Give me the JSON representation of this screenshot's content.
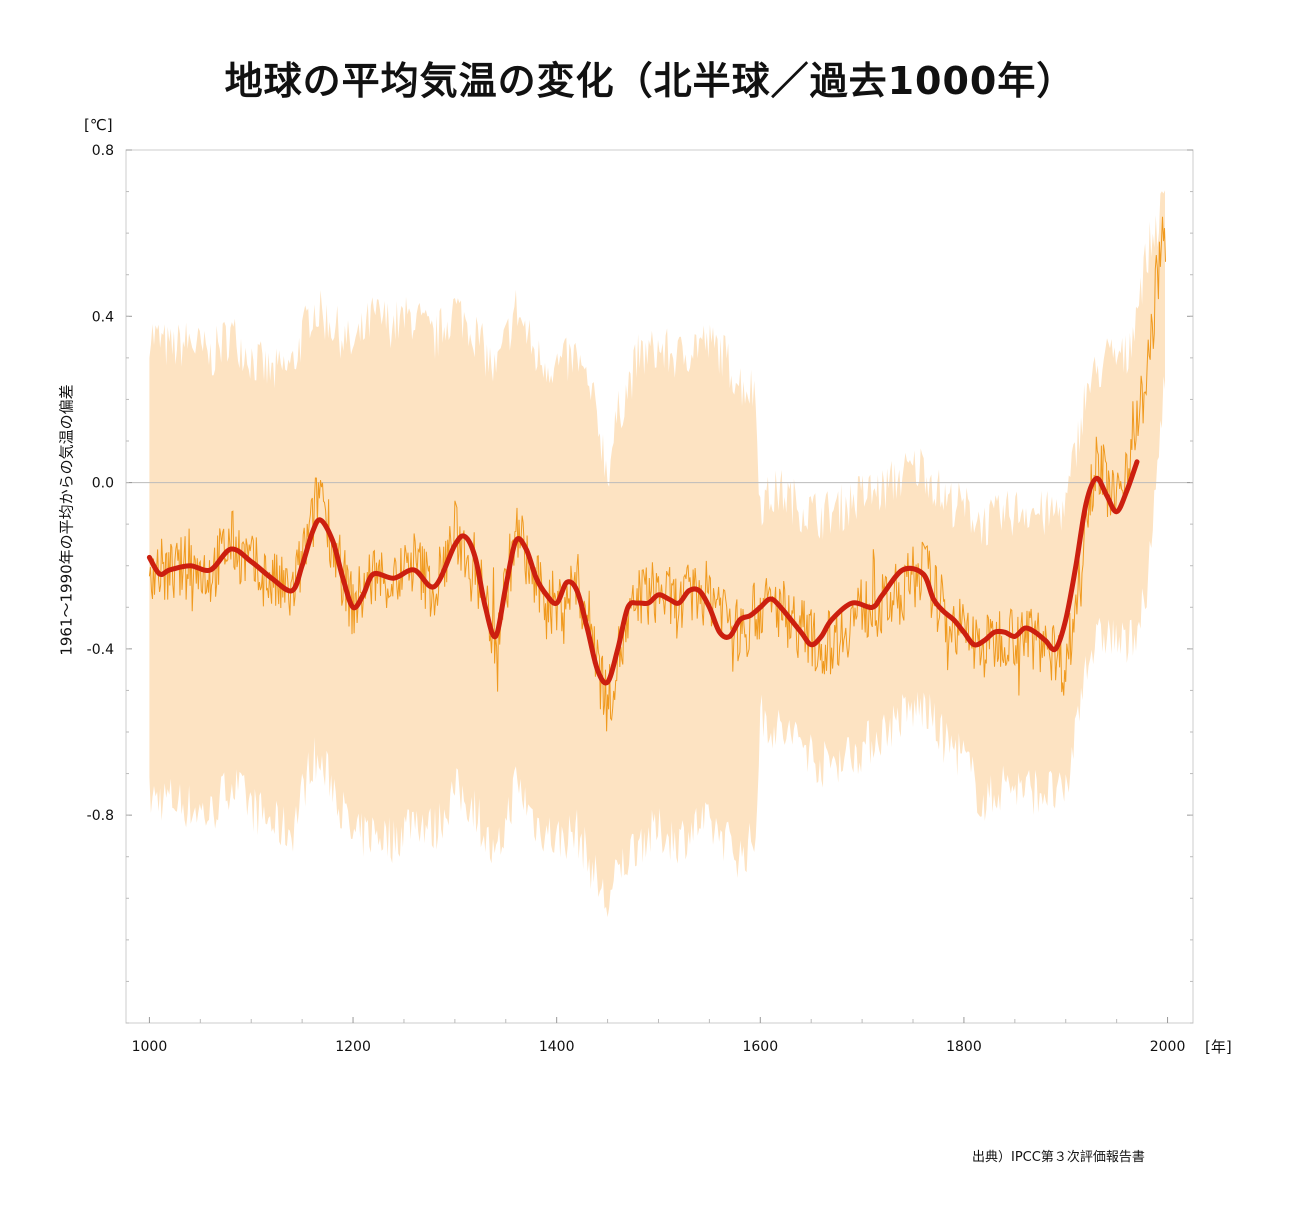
{
  "title": "地球の平均気温の変化（北半球／過去1000年）",
  "y_unit": "[℃]",
  "y_axis_label": "1961～1990年の平均からの気温の偏差",
  "x_unit": "[年]",
  "source": "出典）IPCC第３次評価報告書",
  "colors": {
    "smoothed": "#cc1f0f",
    "annual": "#f09a1f",
    "uncertainty": "#fde3c2",
    "zero_line": "#bbbbbb",
    "frame": "#cccccc"
  },
  "chart_data": {
    "type": "line",
    "title": "地球の平均気温の変化（北半球／過去1000年）",
    "xlabel": "[年]",
    "ylabel": "1961～1990年の平均からの気温の偏差",
    "xlim": [
      977,
      2025
    ],
    "ylim": [
      -1.3,
      0.8
    ],
    "x_ticks": [
      1000,
      1200,
      1400,
      1600,
      1800,
      2000
    ],
    "x_tick_labels": [
      "1000",
      "1200",
      "1400",
      "1600",
      "1800",
      "2000"
    ],
    "y_ticks": [
      0.8,
      0.4,
      0.0,
      -0.4,
      -0.8
    ],
    "y_tick_labels": [
      "0.8",
      "0.4",
      "0.0",
      "-0.4",
      "-0.8"
    ],
    "grid": false,
    "zero_line": true,
    "series": [
      {
        "style": "smoothed-thick",
        "x": [
          1000,
          1010,
          1020,
          1040,
          1060,
          1080,
          1100,
          1120,
          1140,
          1150,
          1160,
          1168,
          1180,
          1190,
          1200,
          1210,
          1220,
          1240,
          1260,
          1280,
          1300,
          1310,
          1320,
          1330,
          1340,
          1350,
          1360,
          1370,
          1380,
          1390,
          1400,
          1410,
          1420,
          1430,
          1440,
          1450,
          1460,
          1470,
          1480,
          1490,
          1500,
          1510,
          1520,
          1530,
          1540,
          1550,
          1560,
          1570,
          1580,
          1590,
          1600,
          1610,
          1620,
          1640,
          1650,
          1660,
          1670,
          1690,
          1710,
          1720,
          1740,
          1760,
          1770,
          1780,
          1790,
          1800,
          1810,
          1820,
          1830,
          1840,
          1850,
          1860,
          1870,
          1880,
          1890,
          1900,
          1910,
          1920,
          1930,
          1940,
          1950,
          1960,
          1970
        ],
        "values": [
          -0.18,
          -0.22,
          -0.21,
          -0.2,
          -0.21,
          -0.16,
          -0.19,
          -0.23,
          -0.26,
          -0.2,
          -0.12,
          -0.09,
          -0.14,
          -0.23,
          -0.3,
          -0.27,
          -0.22,
          -0.23,
          -0.21,
          -0.25,
          -0.15,
          -0.13,
          -0.18,
          -0.3,
          -0.37,
          -0.25,
          -0.14,
          -0.16,
          -0.23,
          -0.27,
          -0.29,
          -0.24,
          -0.26,
          -0.35,
          -0.45,
          -0.48,
          -0.4,
          -0.3,
          -0.29,
          -0.29,
          -0.27,
          -0.28,
          -0.29,
          -0.26,
          -0.26,
          -0.3,
          -0.36,
          -0.37,
          -0.33,
          -0.32,
          -0.3,
          -0.28,
          -0.3,
          -0.36,
          -0.39,
          -0.37,
          -0.33,
          -0.29,
          -0.3,
          -0.27,
          -0.21,
          -0.22,
          -0.28,
          -0.31,
          -0.33,
          -0.36,
          -0.39,
          -0.38,
          -0.36,
          -0.36,
          -0.37,
          -0.35,
          -0.36,
          -0.38,
          -0.4,
          -0.33,
          -0.2,
          -0.05,
          0.01,
          -0.03,
          -0.07,
          -0.02,
          0.05
        ]
      },
      {
        "style": "annual-thin",
        "x": [
          1000,
          1020,
          1040,
          1060,
          1080,
          1100,
          1120,
          1140,
          1160,
          1168,
          1180,
          1200,
          1220,
          1240,
          1260,
          1280,
          1300,
          1320,
          1340,
          1360,
          1380,
          1400,
          1420,
          1440,
          1450,
          1460,
          1480,
          1500,
          1520,
          1540,
          1560,
          1580,
          1600,
          1620,
          1640,
          1660,
          1680,
          1700,
          1720,
          1740,
          1760,
          1780,
          1800,
          1820,
          1840,
          1860,
          1880,
          1900,
          1910,
          1920,
          1930,
          1940,
          1950,
          1960,
          1970,
          1980,
          1990,
          1998
        ],
        "values": [
          -0.2,
          -0.22,
          -0.2,
          -0.22,
          -0.14,
          -0.2,
          -0.24,
          -0.27,
          -0.1,
          0.0,
          -0.15,
          -0.3,
          -0.22,
          -0.24,
          -0.19,
          -0.26,
          -0.12,
          -0.2,
          -0.38,
          -0.12,
          -0.25,
          -0.3,
          -0.24,
          -0.4,
          -0.54,
          -0.42,
          -0.28,
          -0.26,
          -0.3,
          -0.26,
          -0.28,
          -0.37,
          -0.3,
          -0.3,
          -0.35,
          -0.4,
          -0.36,
          -0.3,
          -0.3,
          -0.26,
          -0.2,
          -0.32,
          -0.36,
          -0.4,
          -0.36,
          -0.37,
          -0.38,
          -0.44,
          -0.3,
          -0.05,
          0.05,
          0.0,
          -0.05,
          0.05,
          0.15,
          0.25,
          0.5,
          0.6
        ]
      },
      {
        "style": "uncertainty-band",
        "x": [
          1000,
          1020,
          1040,
          1060,
          1080,
          1100,
          1120,
          1140,
          1160,
          1180,
          1200,
          1220,
          1240,
          1260,
          1280,
          1300,
          1320,
          1340,
          1360,
          1380,
          1400,
          1420,
          1440,
          1450,
          1460,
          1480,
          1500,
          1520,
          1540,
          1560,
          1580,
          1595,
          1600,
          1620,
          1640,
          1660,
          1680,
          1700,
          1720,
          1740,
          1760,
          1780,
          1800,
          1820,
          1840,
          1860,
          1880,
          1900,
          1920,
          1940,
          1960,
          1980,
          1998
        ],
        "upper": [
          0.36,
          0.32,
          0.34,
          0.3,
          0.36,
          0.3,
          0.26,
          0.28,
          0.42,
          0.38,
          0.32,
          0.4,
          0.38,
          0.4,
          0.34,
          0.42,
          0.36,
          0.26,
          0.42,
          0.3,
          0.28,
          0.3,
          0.16,
          0.02,
          0.16,
          0.3,
          0.32,
          0.3,
          0.34,
          0.32,
          0.24,
          0.22,
          -0.05,
          -0.02,
          -0.06,
          -0.08,
          -0.06,
          -0.03,
          -0.02,
          0.02,
          0.04,
          -0.04,
          -0.06,
          -0.1,
          -0.08,
          -0.06,
          -0.08,
          -0.06,
          0.22,
          0.3,
          0.3,
          0.55,
          0.68
        ],
        "lower": [
          -0.76,
          -0.76,
          -0.78,
          -0.8,
          -0.72,
          -0.78,
          -0.82,
          -0.84,
          -0.66,
          -0.72,
          -0.86,
          -0.84,
          -0.86,
          -0.8,
          -0.84,
          -0.74,
          -0.78,
          -0.92,
          -0.72,
          -0.82,
          -0.86,
          -0.84,
          -0.96,
          -1.02,
          -0.94,
          -0.86,
          -0.84,
          -0.86,
          -0.82,
          -0.84,
          -0.9,
          -0.86,
          -0.56,
          -0.6,
          -0.62,
          -0.68,
          -0.66,
          -0.64,
          -0.6,
          -0.56,
          -0.54,
          -0.62,
          -0.66,
          -0.78,
          -0.72,
          -0.74,
          -0.74,
          -0.76,
          -0.42,
          -0.36,
          -0.4,
          -0.28,
          0.3
        ]
      }
    ]
  }
}
